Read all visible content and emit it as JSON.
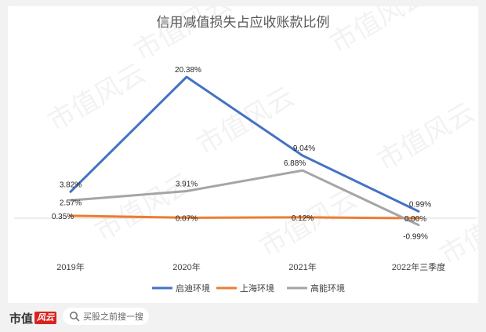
{
  "chart_data": {
    "type": "line",
    "title": "信用减值损失占应收账款比例",
    "categories": [
      "2019年",
      "2020年",
      "2021年",
      "2022年三季度"
    ],
    "ylim": [
      -3,
      22
    ],
    "grid": false,
    "legend_position": "bottom",
    "series": [
      {
        "name": "启迪环境",
        "color": "#4472c4",
        "values": [
          3.82,
          20.38,
          9.04,
          0.99
        ],
        "labels": [
          "3.82%",
          "20.38%",
          "9.04%",
          "0.99%"
        ]
      },
      {
        "name": "上海环境",
        "color": "#ed7d31",
        "values": [
          0.35,
          0.07,
          0.12,
          0.0
        ],
        "labels": [
          "0.35%",
          "0.07%",
          "0.12%",
          "0.00%"
        ]
      },
      {
        "name": "高能环境",
        "color": "#a5a5a5",
        "values": [
          2.57,
          3.91,
          6.88,
          -0.99
        ],
        "labels": [
          "2.57%",
          "3.91%",
          "6.88%",
          "-0.99%"
        ]
      }
    ]
  },
  "watermark": "市值风云",
  "footer": {
    "brand": "市值",
    "badge": "风云",
    "search_text": "买股之前搜一搜",
    "search_icon": "search-icon"
  },
  "colors": {
    "page_background": "#f2f2f2",
    "axis": "#d9d9d9",
    "text": "#404040",
    "title": "#595959",
    "brand_red": "#d9231e"
  }
}
